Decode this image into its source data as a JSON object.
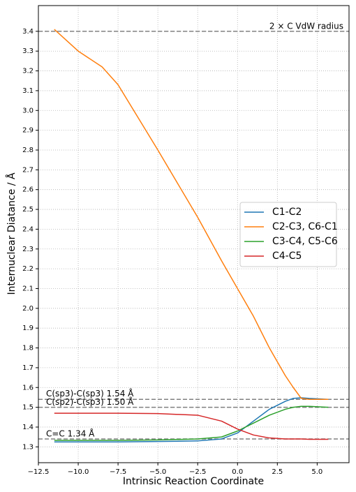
{
  "chart_data": {
    "type": "line",
    "xlabel": "Intrinsic Reaction Coordinate",
    "ylabel": "Internuclear Diatance / Å",
    "x": [
      -11.5,
      -10,
      -8.5,
      -7.5,
      -5,
      -2.5,
      -1,
      0,
      1,
      2,
      3,
      3.5,
      4,
      4.5,
      5.7
    ],
    "series": [
      {
        "name": "C1-C2",
        "color": "#1f77b4",
        "values": [
          1.325,
          1.325,
          1.325,
          1.325,
          1.327,
          1.33,
          1.34,
          1.37,
          1.43,
          1.49,
          1.53,
          1.545,
          1.548,
          1.545,
          1.54
        ]
      },
      {
        "name": "C2-C3, C6-C1",
        "color": "#ff7f0e",
        "values": [
          3.41,
          3.3,
          3.22,
          3.13,
          2.8,
          2.46,
          2.24,
          2.1,
          1.96,
          1.8,
          1.66,
          1.6,
          1.545,
          1.54,
          1.54
        ]
      },
      {
        "name": "C3-C4, C5-C6",
        "color": "#2ca02c",
        "values": [
          1.333,
          1.333,
          1.333,
          1.333,
          1.335,
          1.34,
          1.35,
          1.38,
          1.42,
          1.46,
          1.49,
          1.5,
          1.505,
          1.505,
          1.5
        ]
      },
      {
        "name": "C4-C5",
        "color": "#d62728",
        "values": [
          1.47,
          1.47,
          1.47,
          1.47,
          1.468,
          1.46,
          1.43,
          1.39,
          1.36,
          1.345,
          1.34,
          1.34,
          1.34,
          1.338,
          1.338
        ]
      }
    ],
    "reference_lines": [
      {
        "value": 3.4,
        "label": "2 × C VdW radius"
      },
      {
        "value": 1.54,
        "label": "C(sp3)-C(sp3) 1.54 Å"
      },
      {
        "value": 1.5,
        "label": "C(sp2)-C(sp3) 1.50 Å"
      },
      {
        "value": 1.34,
        "label": "C=C 1.34 Å"
      }
    ],
    "xlim": [
      -12.5,
      7.0
    ],
    "ylim": [
      1.22,
      3.53
    ],
    "xticks": [
      {
        "value": -12.5,
        "label": "−12.5"
      },
      {
        "value": -10,
        "label": "−10.0"
      },
      {
        "value": -7.5,
        "label": "−7.5"
      },
      {
        "value": -5,
        "label": "−5.0"
      },
      {
        "value": -2.5,
        "label": "−2.5"
      },
      {
        "value": 0,
        "label": "0.0"
      },
      {
        "value": 2.5,
        "label": "2.5"
      },
      {
        "value": 5,
        "label": "5.0"
      }
    ],
    "yticks": [
      1.3,
      1.4,
      1.5,
      1.6,
      1.7,
      1.8,
      1.9,
      {
        "value": 2,
        "label": "2.0"
      },
      2.1,
      2.2,
      2.3,
      2.4,
      2.5,
      2.6,
      2.7,
      2.8,
      2.9,
      {
        "value": 3,
        "label": "3.0"
      },
      3.1,
      3.2,
      3.3,
      3.4
    ],
    "grid": true,
    "legend": "right"
  }
}
